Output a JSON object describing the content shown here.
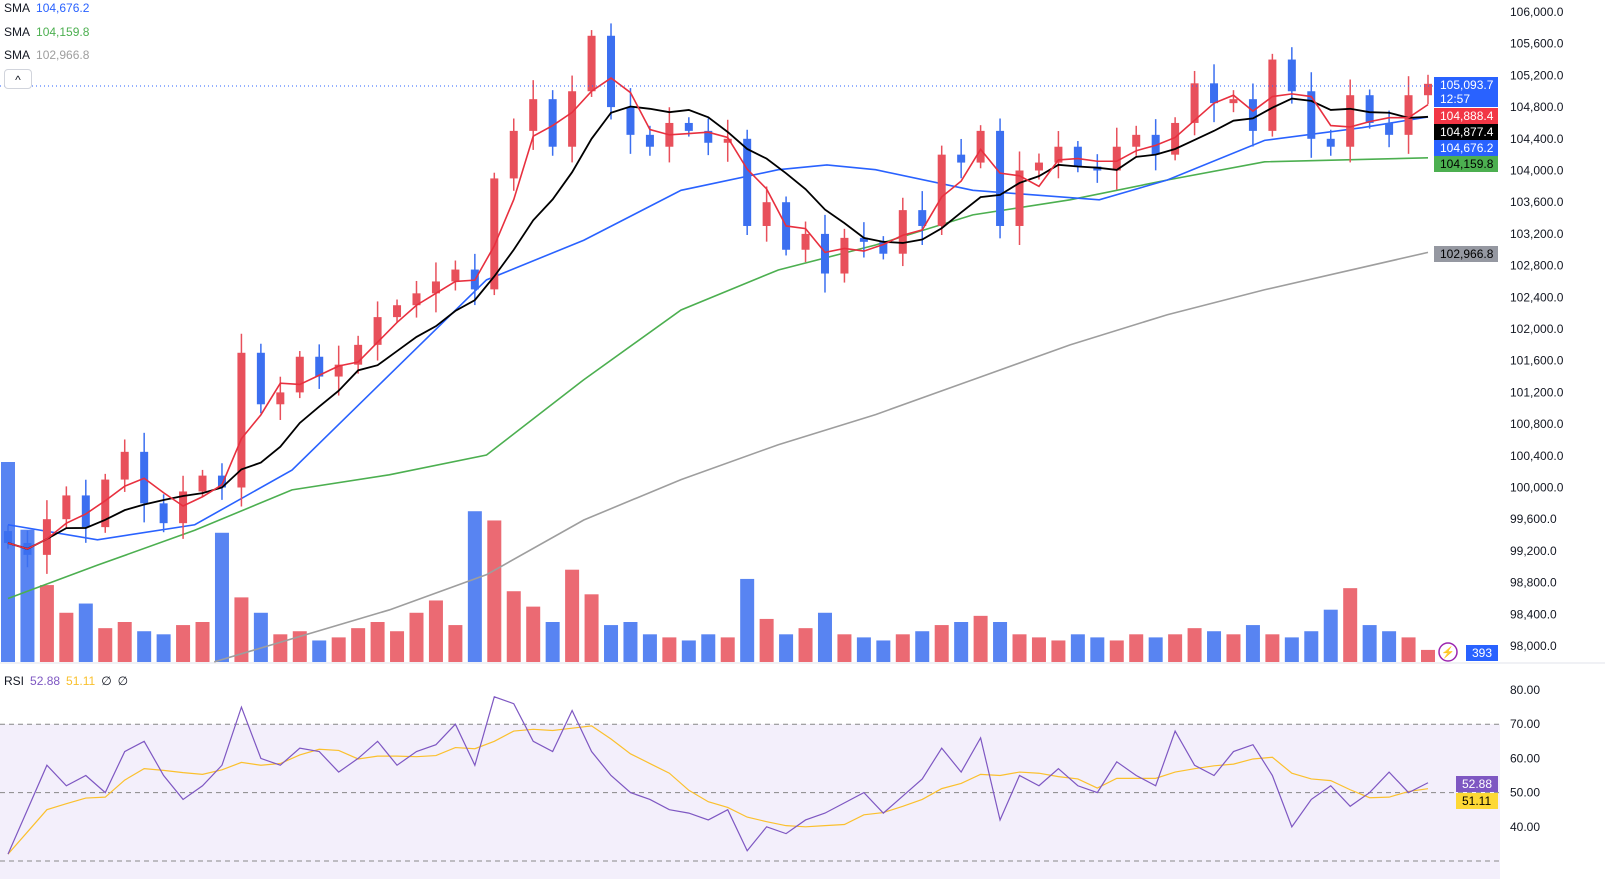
{
  "legend": {
    "sma_rows": [
      {
        "label": "SMA",
        "value": "104,676.2",
        "color": "#2962ff"
      },
      {
        "label": "SMA",
        "value": "104,159.8",
        "color": "#4caf50"
      },
      {
        "label": "SMA",
        "value": "102,966.8",
        "color": "#9e9e9e"
      }
    ],
    "collapse_icon": "^",
    "rsi": {
      "label": "RSI",
      "value": "52.88",
      "ma_value": "51.11",
      "extra1": "∅",
      "extra2": "∅"
    }
  },
  "price_tags": {
    "last": "105,093.7",
    "countdown": "12:57",
    "sma_red": "104,888.4",
    "sma_black": "104,877.4",
    "sma_blue": "104,676.2",
    "sma_green": "104,159.8",
    "sma_gray": "102,966.8",
    "volume": "393"
  },
  "colors": {
    "up": "#e8505b",
    "down": "#3b6ff0",
    "sma_red": "#e8303f",
    "sma_black": "#000000",
    "sma_blue": "#2962ff",
    "sma_green": "#4caf50",
    "sma_gray": "#9e9e9e",
    "rsi": "#7e57c2",
    "rsi_ma": "#fbc02d"
  },
  "chart_data": [
    {
      "type": "candlestick",
      "title": "Price",
      "ylim": [
        98000,
        106000
      ],
      "yticks": [
        "106,000.0",
        "105,600.0",
        "105,200.0",
        "104,800.0",
        "104,400.0",
        "104,000.0",
        "103,600.0",
        "103,200.0",
        "102,800.0",
        "102,400.0",
        "102,000.0",
        "101,600.0",
        "101,200.0",
        "100,800.0",
        "100,400.0",
        "100,000.0",
        "99,600.0",
        "99,200.0",
        "98,800.0",
        "98,400.0",
        "98,000.0"
      ],
      "ytick_values": [
        106000,
        105600,
        105200,
        104800,
        104400,
        104000,
        103600,
        103200,
        102800,
        102400,
        102000,
        101600,
        101200,
        100800,
        100400,
        100000,
        99600,
        99200,
        98800,
        98400,
        98000
      ],
      "first_open": 99450,
      "wick_pad": 120,
      "close": [
        99300,
        99150,
        99600,
        99900,
        99500,
        100100,
        100450,
        99800,
        99550,
        99950,
        100150,
        100000,
        101700,
        101050,
        101200,
        101650,
        101400,
        101550,
        101800,
        102150,
        102300,
        102450,
        102600,
        102750,
        102500,
        103900,
        104500,
        104900,
        104300,
        105000,
        105700,
        104800,
        104450,
        104300,
        104600,
        104500,
        104350,
        104400,
        103300,
        103600,
        103000,
        103200,
        102700,
        103150,
        103100,
        102950,
        103500,
        103300,
        104200,
        104100,
        104500,
        103300,
        104000,
        104100,
        104300,
        104050,
        104000,
        104300,
        104450,
        104200,
        104600,
        105100,
        104850,
        104900,
        104500,
        105400,
        105000,
        104400,
        104300,
        104950,
        104600,
        104450,
        104950,
        105093.7
      ],
      "sma_fast_length": 3,
      "sma_slow_length": 7,
      "sma_blue": [
        [
          0,
          99530
        ],
        [
          4.6,
          99340
        ],
        [
          9.6,
          99530
        ],
        [
          14.6,
          100220
        ],
        [
          19.6,
          101420
        ],
        [
          24.6,
          102620
        ],
        [
          29.6,
          103120
        ],
        [
          34.6,
          103750
        ],
        [
          39.6,
          104010
        ],
        [
          42.1,
          104070
        ],
        [
          44.6,
          104010
        ],
        [
          49.6,
          103750
        ],
        [
          56.1,
          103630
        ],
        [
          59.6,
          103880
        ],
        [
          64.6,
          104380
        ],
        [
          69.6,
          104540
        ],
        [
          73,
          104676.2
        ]
      ],
      "sma_green": [
        [
          0,
          98600
        ],
        [
          4.6,
          99020
        ],
        [
          9.6,
          99460
        ],
        [
          14.6,
          99970
        ],
        [
          19.6,
          100160
        ],
        [
          24.6,
          100410
        ],
        [
          29.6,
          101360
        ],
        [
          34.6,
          102240
        ],
        [
          39.6,
          102745
        ],
        [
          44.6,
          103060
        ],
        [
          49.6,
          103440
        ],
        [
          54.6,
          103630
        ],
        [
          59.6,
          103880
        ],
        [
          64.6,
          104110
        ],
        [
          73,
          104159.8
        ]
      ],
      "sma_gray": [
        [
          10.6,
          97800
        ],
        [
          19.6,
          98455
        ],
        [
          24.6,
          98900
        ],
        [
          29.6,
          99590
        ],
        [
          34.6,
          100100
        ],
        [
          39.6,
          100540
        ],
        [
          44.6,
          100920
        ],
        [
          49.6,
          101360
        ],
        [
          54.6,
          101800
        ],
        [
          59.6,
          102180
        ],
        [
          64.6,
          102495
        ],
        [
          73,
          102966.8
        ]
      ]
    },
    {
      "type": "bar",
      "title": "Volume",
      "ymax": 6500,
      "values": [
        6500,
        4300,
        2500,
        1600,
        1900,
        1100,
        1300,
        1000,
        900,
        1200,
        1300,
        4200,
        2100,
        1600,
        900,
        1000,
        700,
        800,
        1100,
        1300,
        1000,
        1600,
        2000,
        1200,
        4900,
        4600,
        2300,
        1800,
        1300,
        3000,
        2200,
        1200,
        1300,
        900,
        800,
        700,
        900,
        800,
        2700,
        1400,
        900,
        1100,
        1600,
        900,
        800,
        700,
        900,
        1000,
        1200,
        1300,
        1500,
        1300,
        900,
        800,
        700,
        900,
        800,
        700,
        900,
        800,
        900,
        1100,
        1000,
        900,
        1200,
        900,
        800,
        1000,
        1700,
        2400,
        1200,
        1000,
        800,
        393
      ]
    },
    {
      "type": "line",
      "title": "RSI",
      "ylim": [
        30,
        80
      ],
      "yticks": [
        "80.00",
        "70.00",
        "60.00",
        "50.00",
        "40.00"
      ],
      "ytick_values": [
        80,
        70,
        60,
        50,
        40
      ],
      "bands": [
        70,
        50,
        30
      ],
      "ma_length": 6,
      "values": [
        32,
        45,
        58,
        52,
        55,
        50,
        62,
        65,
        55,
        48,
        52,
        58,
        75,
        60,
        58,
        63,
        62,
        56,
        60,
        65,
        58,
        62,
        64,
        70,
        58,
        78,
        76,
        65,
        62,
        74,
        62,
        55,
        50,
        48,
        45,
        44,
        42,
        45,
        33,
        40,
        38,
        42,
        44,
        47,
        50,
        44,
        49,
        54,
        63,
        56,
        66,
        42,
        55,
        52,
        57,
        52,
        50,
        59,
        55,
        52,
        68,
        58,
        55,
        62,
        64,
        55,
        40,
        48,
        52,
        46,
        50,
        56,
        50,
        52.88
      ]
    }
  ]
}
